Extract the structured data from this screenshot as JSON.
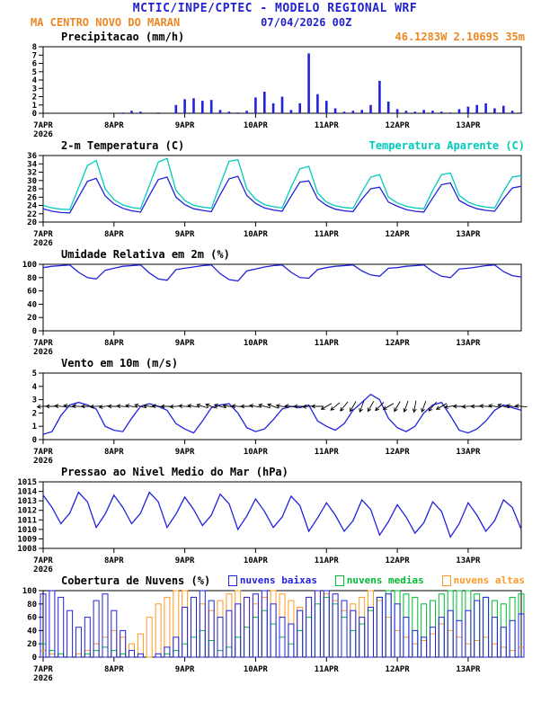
{
  "header": {
    "title": "MCTIC/INPE/CPTEC - MODELO REGIONAL WRF",
    "station": "MA CENTRO NOVO DO MARAN",
    "run_datetime": "07/04/2026 00Z",
    "coords": "46.1283W 2.1069S 35m",
    "title_color": "#2222cc",
    "station_color": "#ee8822"
  },
  "x_axis": {
    "tick_labels": [
      "7APR",
      "8APR",
      "9APR",
      "10APR",
      "11APR",
      "12APR",
      "13APR"
    ],
    "year_label": "2026",
    "tick_hours": [
      0,
      24,
      48,
      72,
      96,
      120,
      144
    ],
    "hours_end": 162,
    "hours": [
      0,
      3,
      6,
      9,
      12,
      15,
      18,
      21,
      24,
      27,
      30,
      33,
      36,
      39,
      42,
      45,
      48,
      51,
      54,
      57,
      60,
      63,
      66,
      69,
      72,
      75,
      78,
      81,
      84,
      87,
      90,
      93,
      96,
      99,
      102,
      105,
      108,
      111,
      114,
      117,
      120,
      123,
      126,
      129,
      132,
      135,
      138,
      141,
      144,
      147,
      150,
      153,
      156,
      159,
      162
    ]
  },
  "chart_data": [
    {
      "type": "bar",
      "title": "Precipitacao (mm/h)",
      "ylim": [
        0,
        8
      ],
      "yticks": [
        0,
        1,
        2,
        3,
        4,
        5,
        6,
        7,
        8
      ],
      "color": "#2222dd",
      "values": [
        0,
        0,
        0,
        0,
        0,
        0,
        0,
        0,
        0,
        0.1,
        0.3,
        0.2,
        0,
        0.1,
        0,
        1.0,
        1.7,
        1.8,
        1.5,
        1.6,
        0.4,
        0.2,
        0.1,
        0.3,
        1.9,
        2.6,
        1.2,
        2.0,
        0.4,
        1.2,
        7.2,
        2.3,
        1.5,
        0.6,
        0.2,
        0.3,
        0.4,
        1.0,
        3.9,
        1.4,
        0.5,
        0.3,
        0.2,
        0.4,
        0.3,
        0.2,
        0.1,
        0.5,
        0.8,
        1.0,
        1.2,
        0.6,
        0.9,
        0.3,
        0.1
      ]
    },
    {
      "type": "line",
      "title": "2-m Temperatura (C)",
      "ylim": [
        20,
        36
      ],
      "yticks": [
        20,
        22,
        24,
        26,
        28,
        30,
        32,
        34,
        36
      ],
      "series": [
        {
          "name": "2-m Temperatura (C)",
          "color": "#2222dd",
          "values": [
            23.2,
            22.6,
            22.3,
            22.2,
            26.0,
            29.8,
            30.5,
            26.3,
            24.4,
            23.3,
            22.7,
            22.4,
            26.4,
            30.2,
            30.8,
            26.0,
            24.2,
            23.2,
            22.8,
            22.5,
            26.6,
            30.4,
            31.0,
            26.4,
            24.5,
            23.4,
            22.9,
            22.6,
            26.2,
            29.6,
            29.9,
            25.6,
            24.0,
            23.1,
            22.7,
            22.5,
            25.5,
            28.0,
            28.4,
            24.8,
            23.8,
            23.0,
            22.6,
            22.4,
            25.8,
            29.0,
            29.4,
            25.2,
            24.0,
            23.2,
            22.8,
            22.6,
            25.6,
            28.2,
            28.6
          ]
        },
        {
          "name": "Temperatura Aparente (C)",
          "color": "#00ccbb",
          "values": [
            24.0,
            23.4,
            23.1,
            23.0,
            28.2,
            33.6,
            34.8,
            28.0,
            25.4,
            24.1,
            23.5,
            23.2,
            28.8,
            34.4,
            35.3,
            27.6,
            25.2,
            24.0,
            23.6,
            23.3,
            29.0,
            34.6,
            35.0,
            28.0,
            25.5,
            24.2,
            23.7,
            23.4,
            28.4,
            32.8,
            33.4,
            27.0,
            24.8,
            23.9,
            23.5,
            23.3,
            27.2,
            30.8,
            31.4,
            26.0,
            24.6,
            23.8,
            23.4,
            23.2,
            27.6,
            31.4,
            31.8,
            26.4,
            24.8,
            24.0,
            23.6,
            23.4,
            27.4,
            30.8,
            31.2
          ]
        }
      ]
    },
    {
      "type": "line",
      "title": "Umidade Relativa em 2m (%)",
      "ylim": [
        0,
        100
      ],
      "yticks": [
        0,
        20,
        40,
        60,
        80,
        100
      ],
      "series": [
        {
          "name": "Umidade Relativa em 2m (%)",
          "color": "#2222dd",
          "values": [
            95,
            97,
            98,
            99,
            88,
            80,
            78,
            91,
            94,
            97,
            98,
            99,
            87,
            78,
            76,
            92,
            94,
            96,
            98,
            99,
            86,
            77,
            75,
            90,
            93,
            96,
            98,
            99,
            88,
            80,
            79,
            92,
            95,
            97,
            98,
            99,
            90,
            84,
            82,
            94,
            95,
            97,
            98,
            99,
            89,
            82,
            80,
            93,
            94,
            96,
            98,
            99,
            89,
            83,
            81
          ]
        }
      ]
    },
    {
      "type": "line",
      "title": "Vento em 10m (m/s)",
      "ylim": [
        0,
        5
      ],
      "yticks": [
        0,
        1,
        2,
        3,
        4,
        5
      ],
      "barb_level": 2.5,
      "barb_color": "#000000",
      "wind_directions_deg": [
        85,
        90,
        95,
        100,
        95,
        90,
        85,
        80,
        90,
        95,
        100,
        105,
        100,
        95,
        90,
        85,
        95,
        100,
        105,
        110,
        105,
        100,
        95,
        90,
        100,
        105,
        110,
        100,
        95,
        90,
        85,
        90,
        60,
        50,
        40,
        30,
        20,
        30,
        45,
        60,
        30,
        20,
        10,
        20,
        40,
        60,
        80,
        90,
        85,
        90,
        95,
        100,
        105,
        100,
        95
      ],
      "series": [
        {
          "name": "Vento em 10m (m/s)",
          "color": "#2222dd",
          "values": [
            0.4,
            0.6,
            1.8,
            2.6,
            2.8,
            2.6,
            2.3,
            1.0,
            0.7,
            0.6,
            1.6,
            2.5,
            2.7,
            2.5,
            2.2,
            1.2,
            0.8,
            0.5,
            1.4,
            2.4,
            2.6,
            2.7,
            2.0,
            0.9,
            0.6,
            0.8,
            1.5,
            2.3,
            2.5,
            2.4,
            2.6,
            1.4,
            1.0,
            0.7,
            1.2,
            2.2,
            2.8,
            3.4,
            3.0,
            1.6,
            0.9,
            0.6,
            1.0,
            2.0,
            2.6,
            2.8,
            1.8,
            0.7,
            0.5,
            0.8,
            1.4,
            2.2,
            2.6,
            2.4,
            2.2
          ]
        }
      ]
    },
    {
      "type": "line",
      "title": "Pressao ao Nivel Medio do Mar (hPa)",
      "ylim": [
        1008,
        1015
      ],
      "yticks": [
        1008,
        1009,
        1010,
        1011,
        1012,
        1013,
        1014,
        1015
      ],
      "series": [
        {
          "name": "Pressao ao Nivel Medio do Mar (hPa)",
          "color": "#2222dd",
          "values": [
            1013.6,
            1012.3,
            1010.6,
            1011.7,
            1013.9,
            1012.9,
            1010.2,
            1011.6,
            1013.6,
            1012.3,
            1010.6,
            1011.7,
            1013.9,
            1012.9,
            1010.2,
            1011.6,
            1013.4,
            1012.1,
            1010.4,
            1011.5,
            1013.7,
            1012.7,
            1010.0,
            1011.4,
            1013.2,
            1011.9,
            1010.2,
            1011.3,
            1013.5,
            1012.5,
            1009.8,
            1011.2,
            1012.8,
            1011.5,
            1009.8,
            1010.9,
            1013.1,
            1012.1,
            1009.4,
            1010.8,
            1012.6,
            1011.3,
            1009.6,
            1010.7,
            1012.9,
            1011.9,
            1009.2,
            1010.6,
            1012.8,
            1011.5,
            1009.8,
            1010.9,
            1013.1,
            1012.3,
            1010.0
          ]
        }
      ]
    },
    {
      "type": "bar",
      "title": "Cobertura de Nuvens (%)",
      "ylim": [
        0,
        100
      ],
      "yticks": [
        0,
        20,
        40,
        60,
        80,
        100
      ],
      "series": [
        {
          "name": "nuvens baixas",
          "color": "#2222dd",
          "values": [
            95,
            100,
            90,
            70,
            45,
            60,
            85,
            95,
            70,
            40,
            10,
            5,
            0,
            5,
            15,
            30,
            75,
            90,
            100,
            85,
            60,
            70,
            80,
            90,
            95,
            100,
            80,
            60,
            50,
            70,
            90,
            100,
            100,
            95,
            85,
            70,
            60,
            75,
            90,
            95,
            80,
            60,
            40,
            30,
            45,
            60,
            70,
            55,
            70,
            85,
            90,
            60,
            45,
            55,
            65
          ]
        },
        {
          "name": "nuvens medias",
          "color": "#00bb33",
          "values": [
            20,
            10,
            5,
            0,
            0,
            5,
            10,
            15,
            10,
            5,
            0,
            0,
            0,
            0,
            5,
            10,
            20,
            30,
            40,
            25,
            10,
            15,
            30,
            45,
            60,
            70,
            50,
            30,
            20,
            40,
            60,
            80,
            90,
            80,
            60,
            40,
            50,
            70,
            90,
            100,
            100,
            95,
            90,
            80,
            85,
            95,
            100,
            100,
            100,
            95,
            90,
            85,
            80,
            90,
            95
          ]
        },
        {
          "name": "nuvens altas",
          "color": "#ff9922",
          "values": [
            10,
            5,
            0,
            0,
            5,
            10,
            20,
            30,
            40,
            30,
            20,
            35,
            60,
            80,
            90,
            100,
            100,
            90,
            80,
            70,
            85,
            95,
            100,
            90,
            80,
            90,
            100,
            95,
            85,
            75,
            90,
            100,
            95,
            85,
            70,
            80,
            90,
            100,
            85,
            60,
            40,
            30,
            20,
            25,
            35,
            50,
            40,
            30,
            20,
            25,
            30,
            20,
            15,
            10,
            15
          ]
        }
      ]
    }
  ]
}
